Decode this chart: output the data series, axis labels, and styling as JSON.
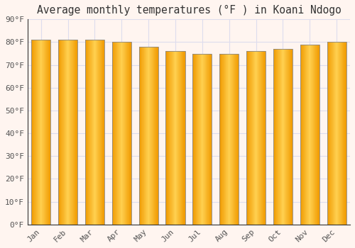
{
  "title": "Average monthly temperatures (°F ) in Koani Ndogo",
  "months": [
    "Jan",
    "Feb",
    "Mar",
    "Apr",
    "May",
    "Jun",
    "Jul",
    "Aug",
    "Sep",
    "Oct",
    "Nov",
    "Dec"
  ],
  "values": [
    81,
    81,
    81,
    80,
    78,
    76,
    75,
    75,
    76,
    77,
    79,
    80
  ],
  "bar_color_center": "#FFD050",
  "bar_color_edge": "#F5A800",
  "bar_border_color": "#888888",
  "ylim": [
    0,
    90
  ],
  "ytick_step": 10,
  "background_color": "#FFF5F0",
  "plot_bg_color": "#FFF5F0",
  "grid_color": "#DDDDEE",
  "title_fontsize": 10.5,
  "tick_fontsize": 8,
  "title_font_family": "monospace"
}
